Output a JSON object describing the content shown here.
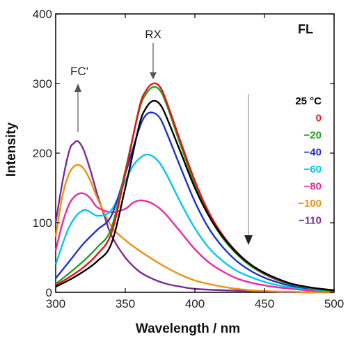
{
  "chart_data": {
    "type": "line",
    "xlabel": "Wavelength / nm",
    "ylabel": "Intensity",
    "xlim": [
      300,
      500
    ],
    "ylim": [
      0,
      400
    ],
    "xticks": [
      300,
      350,
      400,
      450,
      500
    ],
    "yticks": [
      0,
      100,
      200,
      300,
      400
    ],
    "grid": false,
    "legend_position": "right",
    "panel_label": "FL",
    "annotations": [
      {
        "text": "RX",
        "x": 371,
        "y": 300
      },
      {
        "text": "FC'",
        "x": 316,
        "y": 225
      }
    ],
    "arrow_note": "decreasing temperature",
    "series": [
      {
        "name": "25 °C",
        "color": "#000000",
        "x": [
          300,
          310,
          320,
          330,
          340,
          350,
          360,
          365,
          370,
          375,
          380,
          390,
          400,
          410,
          420,
          430,
          440,
          450,
          460,
          470,
          480,
          490,
          500
        ],
        "y": [
          8,
          18,
          30,
          45,
          70,
          150,
          240,
          265,
          275,
          270,
          250,
          200,
          150,
          110,
          80,
          57,
          40,
          28,
          19,
          12,
          8,
          5,
          3
        ]
      },
      {
        "name": "0",
        "color": "#e81010",
        "x": [
          300,
          310,
          320,
          330,
          340,
          350,
          360,
          365,
          370,
          375,
          380,
          390,
          400,
          410,
          420,
          430,
          440,
          450,
          460,
          470,
          480,
          490,
          500
        ],
        "y": [
          10,
          22,
          36,
          55,
          85,
          170,
          265,
          290,
          300,
          295,
          272,
          215,
          160,
          115,
          82,
          58,
          40,
          27,
          18,
          12,
          8,
          5,
          3
        ]
      },
      {
        "name": "−20",
        "color": "#22a022",
        "x": [
          300,
          310,
          320,
          330,
          340,
          350,
          360,
          365,
          370,
          375,
          380,
          390,
          400,
          410,
          420,
          430,
          440,
          450,
          460,
          470,
          480,
          490,
          500
        ],
        "y": [
          12,
          28,
          45,
          65,
          92,
          175,
          262,
          285,
          295,
          290,
          268,
          210,
          155,
          110,
          78,
          55,
          38,
          26,
          17,
          11,
          7,
          4,
          2
        ]
      },
      {
        "name": "−40",
        "color": "#1f2fd0",
        "x": [
          300,
          310,
          320,
          330,
          340,
          350,
          360,
          365,
          370,
          375,
          380,
          390,
          400,
          410,
          420,
          430,
          440,
          450,
          460,
          470,
          480,
          490,
          500
        ],
        "y": [
          20,
          45,
          70,
          90,
          110,
          170,
          235,
          255,
          258,
          250,
          228,
          178,
          130,
          92,
          65,
          45,
          31,
          21,
          14,
          9,
          6,
          4,
          2
        ]
      },
      {
        "name": "−60",
        "color": "#00c8f0",
        "x": [
          300,
          310,
          320,
          330,
          340,
          350,
          355,
          360,
          365,
          370,
          375,
          380,
          390,
          400,
          410,
          420,
          430,
          440,
          450,
          460,
          470,
          480,
          490,
          500
        ],
        "y": [
          40,
          95,
          118,
          110,
          118,
          160,
          180,
          192,
          198,
          195,
          185,
          168,
          128,
          92,
          64,
          45,
          31,
          22,
          15,
          10,
          7,
          5,
          3,
          2
        ]
      },
      {
        "name": "−80",
        "color": "#f0289a",
        "x": [
          300,
          305,
          310,
          315,
          320,
          325,
          330,
          340,
          350,
          355,
          360,
          365,
          370,
          375,
          380,
          390,
          400,
          410,
          420,
          430,
          440,
          450,
          460,
          470,
          480,
          490,
          500
        ],
        "y": [
          60,
          100,
          128,
          140,
          142,
          135,
          122,
          115,
          120,
          128,
          132,
          131,
          127,
          120,
          110,
          86,
          62,
          43,
          30,
          20,
          14,
          10,
          7,
          5,
          3,
          2,
          1
        ]
      },
      {
        "name": "−100",
        "color": "#f09010",
        "x": [
          300,
          305,
          310,
          315,
          320,
          325,
          330,
          340,
          350,
          360,
          370,
          380,
          390,
          400,
          410,
          420,
          430,
          440,
          450,
          460,
          470,
          480,
          490,
          500
        ],
        "y": [
          80,
          140,
          172,
          183,
          178,
          160,
          135,
          95,
          75,
          60,
          47,
          35,
          25,
          17,
          12,
          8,
          5,
          3,
          2,
          1,
          1,
          0,
          0,
          0
        ]
      },
      {
        "name": "−110",
        "color": "#7a2a9a",
        "x": [
          300,
          305,
          310,
          313,
          316,
          320,
          325,
          330,
          335,
          340,
          350,
          360,
          370,
          380,
          390,
          400,
          420,
          440,
          460,
          480,
          500
        ],
        "y": [
          100,
          160,
          205,
          214,
          217,
          205,
          175,
          140,
          110,
          82,
          50,
          30,
          19,
          12,
          8,
          5,
          3,
          2,
          1,
          0,
          0
        ]
      }
    ]
  }
}
